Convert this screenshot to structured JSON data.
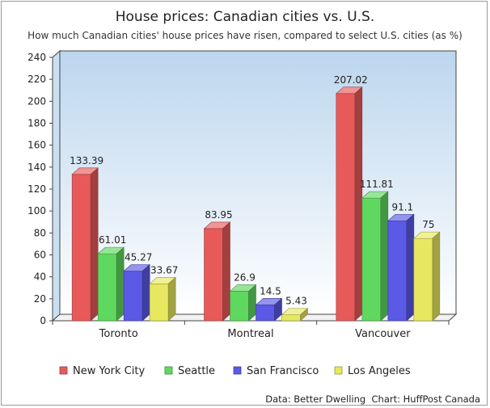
{
  "chart_data": {
    "type": "bar",
    "title": "House prices: Canadian cities vs. U.S.",
    "subtitle": "How much Canadian cities' house prices have risen, compared to select U.S. cities (as %)",
    "categories": [
      "Toronto",
      "Montreal",
      "Vancouver"
    ],
    "series": [
      {
        "name": "New York City",
        "values": [
          133.39,
          83.95,
          207.02
        ],
        "value_labels": [
          "133.39",
          "83.95",
          "207.02"
        ],
        "color": "#e85a5a"
      },
      {
        "name": "Seattle",
        "values": [
          61.01,
          26.9,
          111.81
        ],
        "value_labels": [
          "61.01",
          "26.9",
          "111.81"
        ],
        "color": "#5fd85f"
      },
      {
        "name": "San Francisco",
        "values": [
          45.27,
          14.5,
          91.1
        ],
        "value_labels": [
          "45.27",
          "14.5",
          "91.1"
        ],
        "color": "#5a5ae6"
      },
      {
        "name": "Los Angeles",
        "values": [
          33.67,
          5.43,
          75
        ],
        "value_labels": [
          "33.67",
          "5.43",
          "75"
        ],
        "color": "#e8e860"
      }
    ],
    "ylim": [
      0,
      240
    ],
    "yticks": [
      0,
      20,
      40,
      60,
      80,
      100,
      120,
      140,
      160,
      180,
      200,
      220,
      240
    ],
    "xlabel": "",
    "ylabel": "",
    "grid": false,
    "legend_position": "bottom",
    "credit": "Data: Better Dwelling  Chart: HuffPost Canada"
  }
}
